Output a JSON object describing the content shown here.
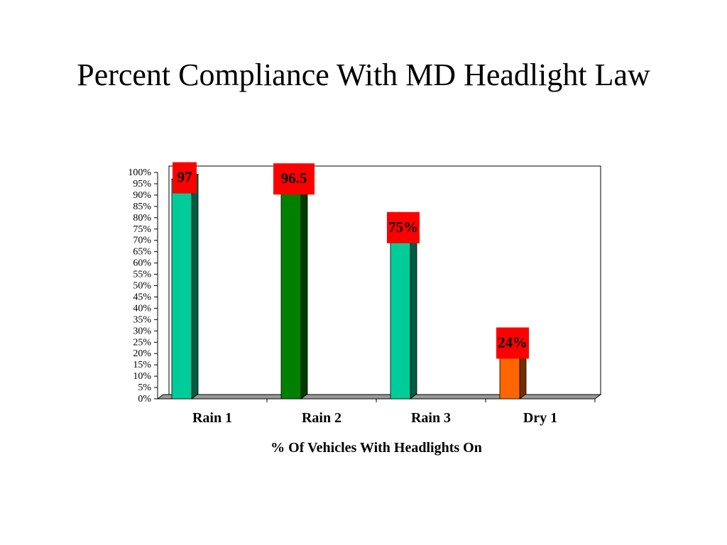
{
  "slide": {
    "title": "Percent Compliance With MD Headlight Law"
  },
  "colors": {
    "teal": "#00CC99",
    "green": "#008000",
    "orange": "#FF6600",
    "label_box": "#FF0000"
  },
  "chart_data": {
    "type": "bar",
    "title": "",
    "xlabel": "% Of Vehicles With Headlights On",
    "ylabel": "",
    "ylim": [
      0,
      100
    ],
    "y_ticks": [
      "0%",
      "5%",
      "10%",
      "15%",
      "20%",
      "25%",
      "30%",
      "35%",
      "40%",
      "45%",
      "50%",
      "55%",
      "60%",
      "65%",
      "70%",
      "75%",
      "80%",
      "85%",
      "90%",
      "95%",
      "100%"
    ],
    "categories": [
      "Rain 1",
      "Rain 2",
      "Rain 3",
      "Dry 1"
    ],
    "values": [
      97,
      96.5,
      75,
      24
    ],
    "data_labels": [
      "97",
      "96.5",
      "75%",
      "24%"
    ],
    "bar_colors": [
      "#00CC99",
      "#008000",
      "#00CC99",
      "#FF6600"
    ],
    "style": "3d-column",
    "grid": false,
    "legend": "none"
  }
}
